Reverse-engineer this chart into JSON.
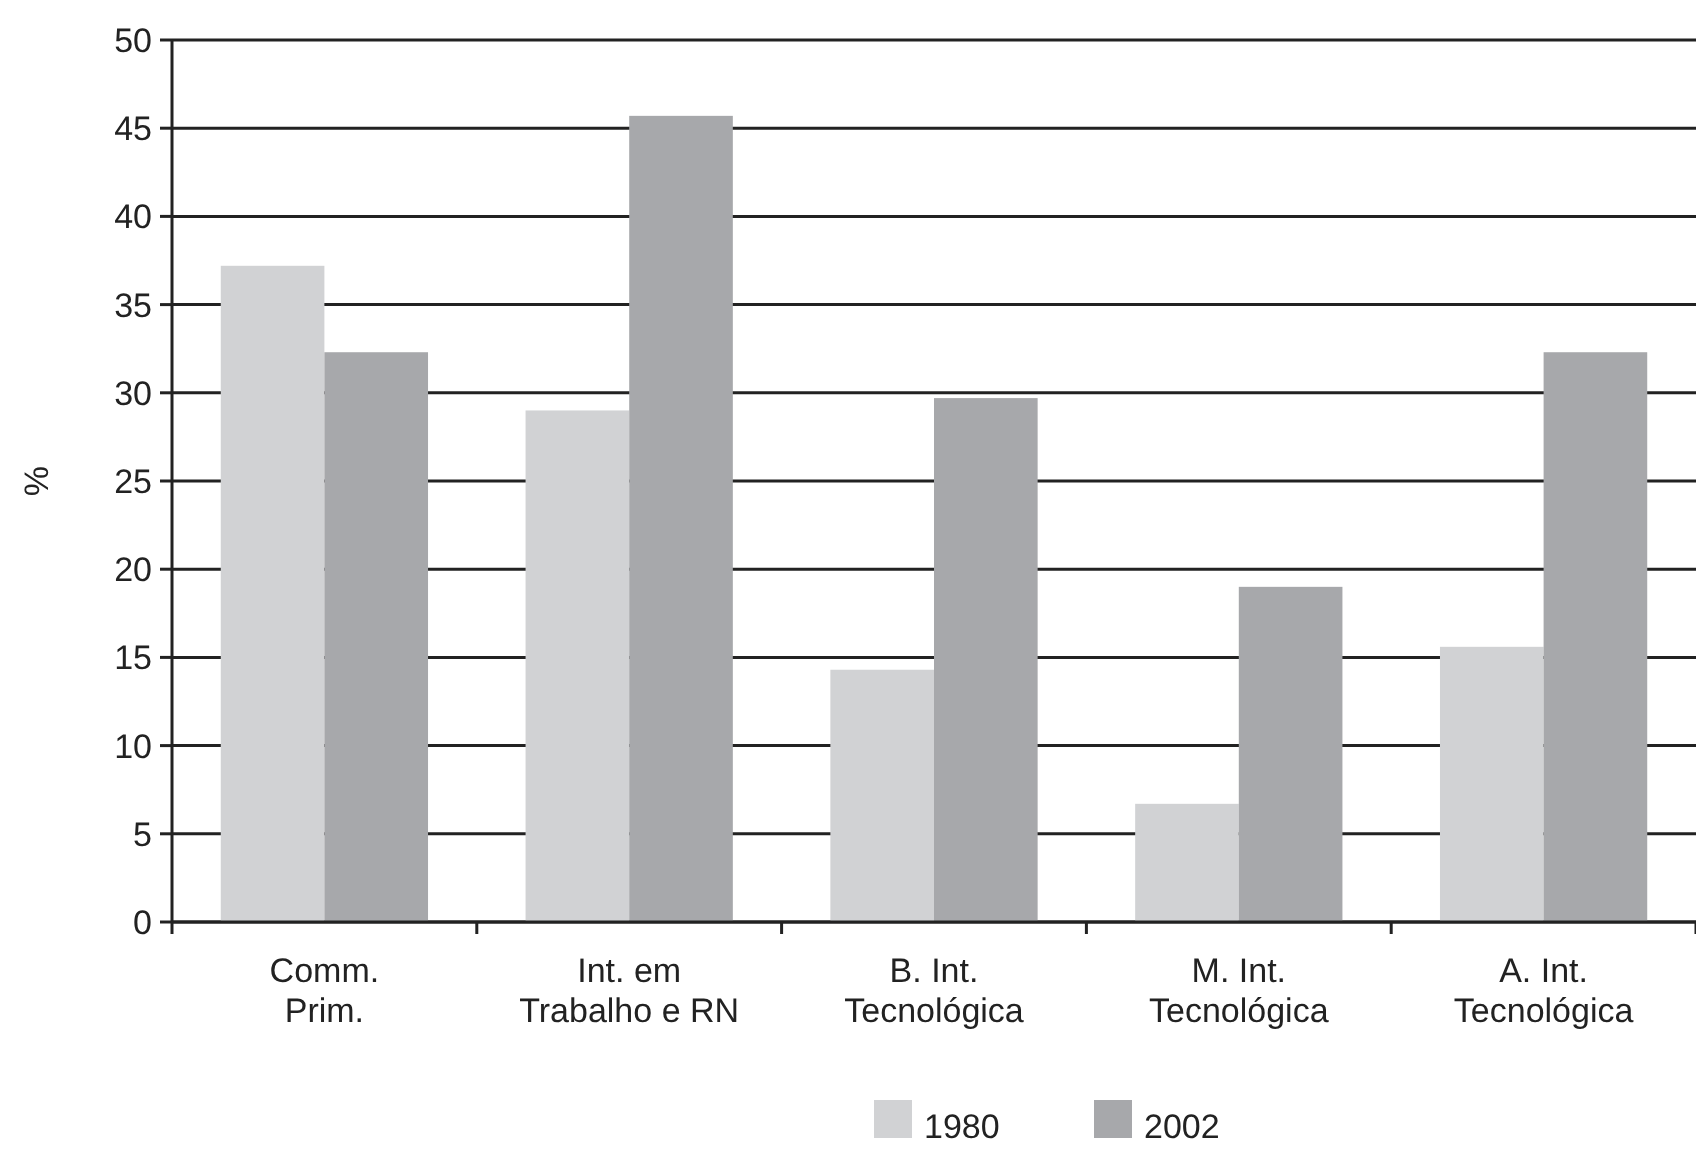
{
  "chart_data": {
    "type": "bar",
    "ylabel": "%",
    "categories": [
      "Comm.\nPrim.",
      "Int. em\nTrabalho e RN",
      "B. Int.\nTecnológica",
      "M. Int.\nTecnológica",
      "A. Int.\nTecnológica"
    ],
    "series": [
      {
        "name": "1980",
        "color": "#d1d2d4",
        "values": [
          37.2,
          29.0,
          14.3,
          6.7,
          15.6
        ]
      },
      {
        "name": "2002",
        "color": "#a7a8ab",
        "values": [
          32.3,
          45.7,
          29.7,
          19.0,
          32.3
        ]
      }
    ],
    "ylim": [
      0,
      50
    ],
    "yticks": [
      0,
      5,
      10,
      15,
      20,
      25,
      30,
      35,
      40,
      45,
      50
    ],
    "grid": "y",
    "legend": "bottom"
  }
}
